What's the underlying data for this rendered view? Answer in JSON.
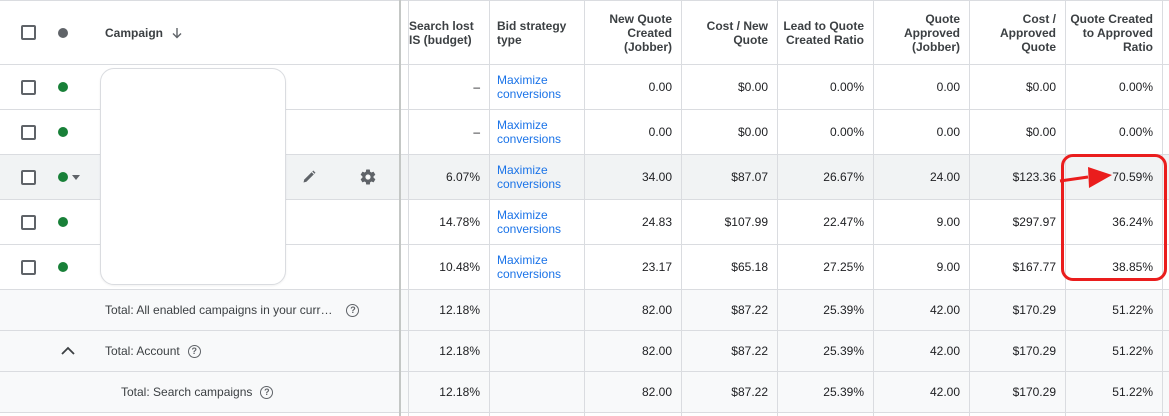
{
  "header": {
    "campaign_label": "Campaign",
    "sort_icon": "arrow-down-icon",
    "columns": {
      "search_lost": "Search lost IS (budget)",
      "bid_strategy": "Bid strategy type",
      "new_quote": "New Quote Created (Jobber)",
      "cost_new_quote": "Cost / New Quote",
      "lead_ratio": "Lead to Quote Created Ratio",
      "quote_approved": "Quote Approved (Jobber)",
      "cost_approved": "Cost / Approved Quote",
      "created_approved_ratio": "Quote Created to Approved Ratio"
    }
  },
  "rows": [
    {
      "search_lost": "–",
      "bid": "Maximize conversions",
      "new_quote": "0.00",
      "cost_new": "$0.00",
      "lead_ratio": "0.00%",
      "approved": "0.00",
      "cost_approved": "$0.00",
      "ratio": "0.00%"
    },
    {
      "search_lost": "–",
      "bid": "Maximize conversions",
      "new_quote": "0.00",
      "cost_new": "$0.00",
      "lead_ratio": "0.00%",
      "approved": "0.00",
      "cost_approved": "$0.00",
      "ratio": "0.00%"
    },
    {
      "search_lost": "6.07%",
      "bid": "Maximize conversions",
      "new_quote": "34.00",
      "cost_new": "$87.07",
      "lead_ratio": "26.67%",
      "approved": "24.00",
      "cost_approved": "$123.36",
      "ratio": "70.59%"
    },
    {
      "search_lost": "14.78%",
      "bid": "Maximize conversions",
      "new_quote": "24.83",
      "cost_new": "$107.99",
      "lead_ratio": "22.47%",
      "approved": "9.00",
      "cost_approved": "$297.97",
      "ratio": "36.24%"
    },
    {
      "search_lost": "10.48%",
      "bid": "Maximize conversions",
      "new_quote": "23.17",
      "cost_new": "$65.18",
      "lead_ratio": "27.25%",
      "approved": "9.00",
      "cost_approved": "$167.77",
      "ratio": "38.85%"
    }
  ],
  "totals": [
    {
      "label": "Total: All enabled campaigns in your curr…",
      "search_lost": "12.18%",
      "new_quote": "82.00",
      "cost_new": "$87.22",
      "lead_ratio": "25.39%",
      "approved": "42.00",
      "cost_approved": "$170.29",
      "ratio": "51.22%"
    },
    {
      "label": "Total: Account",
      "search_lost": "12.18%",
      "new_quote": "82.00",
      "cost_new": "$87.22",
      "lead_ratio": "25.39%",
      "approved": "42.00",
      "cost_approved": "$170.29",
      "ratio": "51.22%"
    },
    {
      "label": "Total: Search campaigns",
      "search_lost": "12.18%",
      "new_quote": "82.00",
      "cost_new": "$87.22",
      "lead_ratio": "25.39%",
      "approved": "42.00",
      "cost_approved": "$170.29",
      "ratio": "51.22%"
    }
  ],
  "colors": {
    "status_enabled": "#188038",
    "link": "#1a73e8",
    "annotation": "#ea1d1d"
  }
}
